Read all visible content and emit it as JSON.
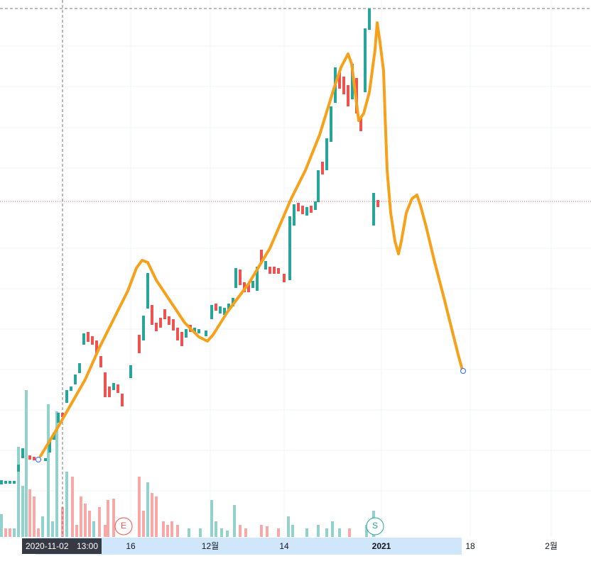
{
  "crosshair": {
    "date": "2020-11-02",
    "time": "13:00"
  },
  "time_axis": {
    "labels": [
      "16",
      "12월",
      "14",
      "2021",
      "18",
      "2월"
    ]
  },
  "markers": [
    "E",
    "S"
  ]
}
